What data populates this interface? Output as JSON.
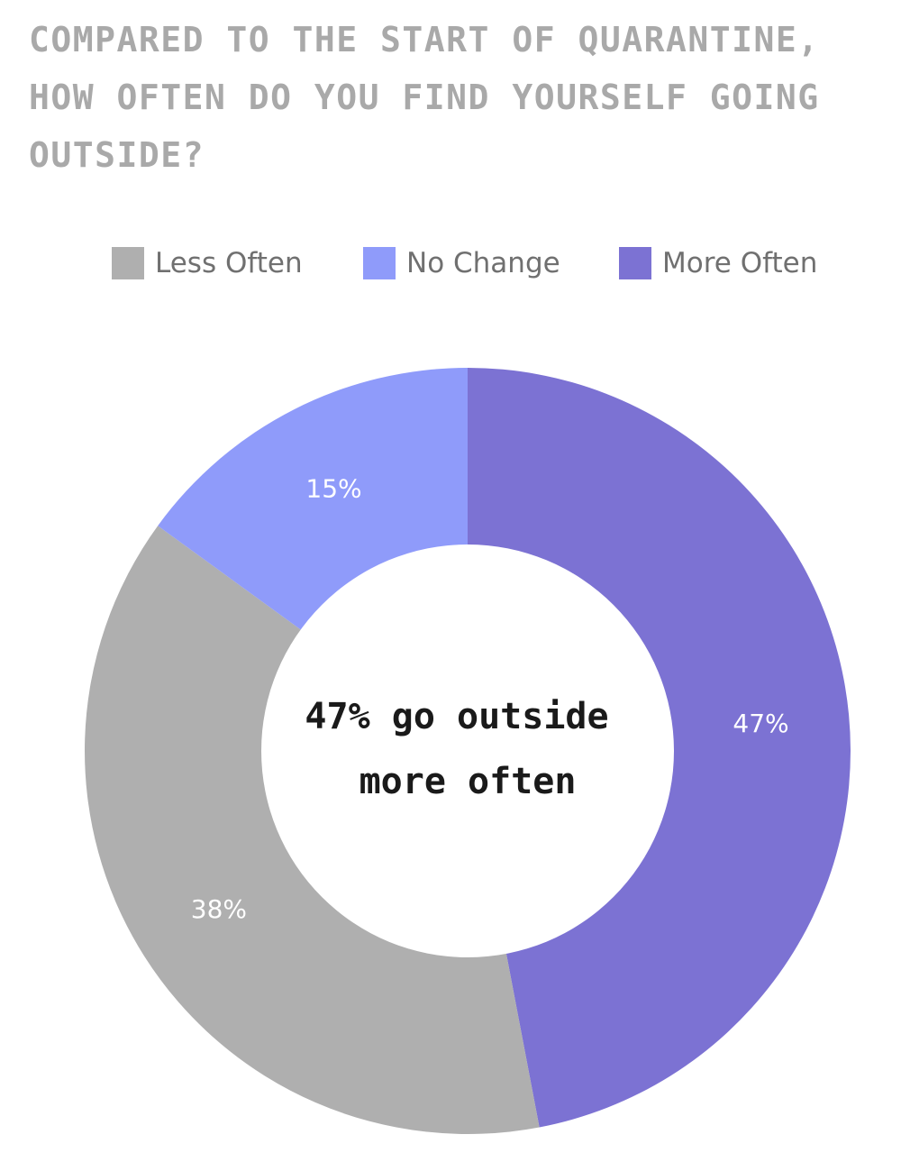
{
  "title": "COMPARED TO THE START OF QUARANTINE, HOW OFTEN DO YOU FIND YOURSELF GOING OUTSIDE?",
  "chart_data": {
    "type": "pie",
    "variant": "donut",
    "legend_position": "top-center",
    "categories": [
      "Less Often",
      "No Change",
      "More Often"
    ],
    "values": [
      38,
      15,
      47
    ],
    "value_labels": [
      "38%",
      "15%",
      "47%"
    ],
    "colors": [
      "#afafaf",
      "#8f9bfa",
      "#7c72d3"
    ],
    "center_text": [
      "47% go outside",
      "more often"
    ],
    "start_angle": "12 o'clock",
    "direction": "clockwise",
    "slice_order": [
      "More Often",
      "Less Often",
      "No Change"
    ]
  }
}
